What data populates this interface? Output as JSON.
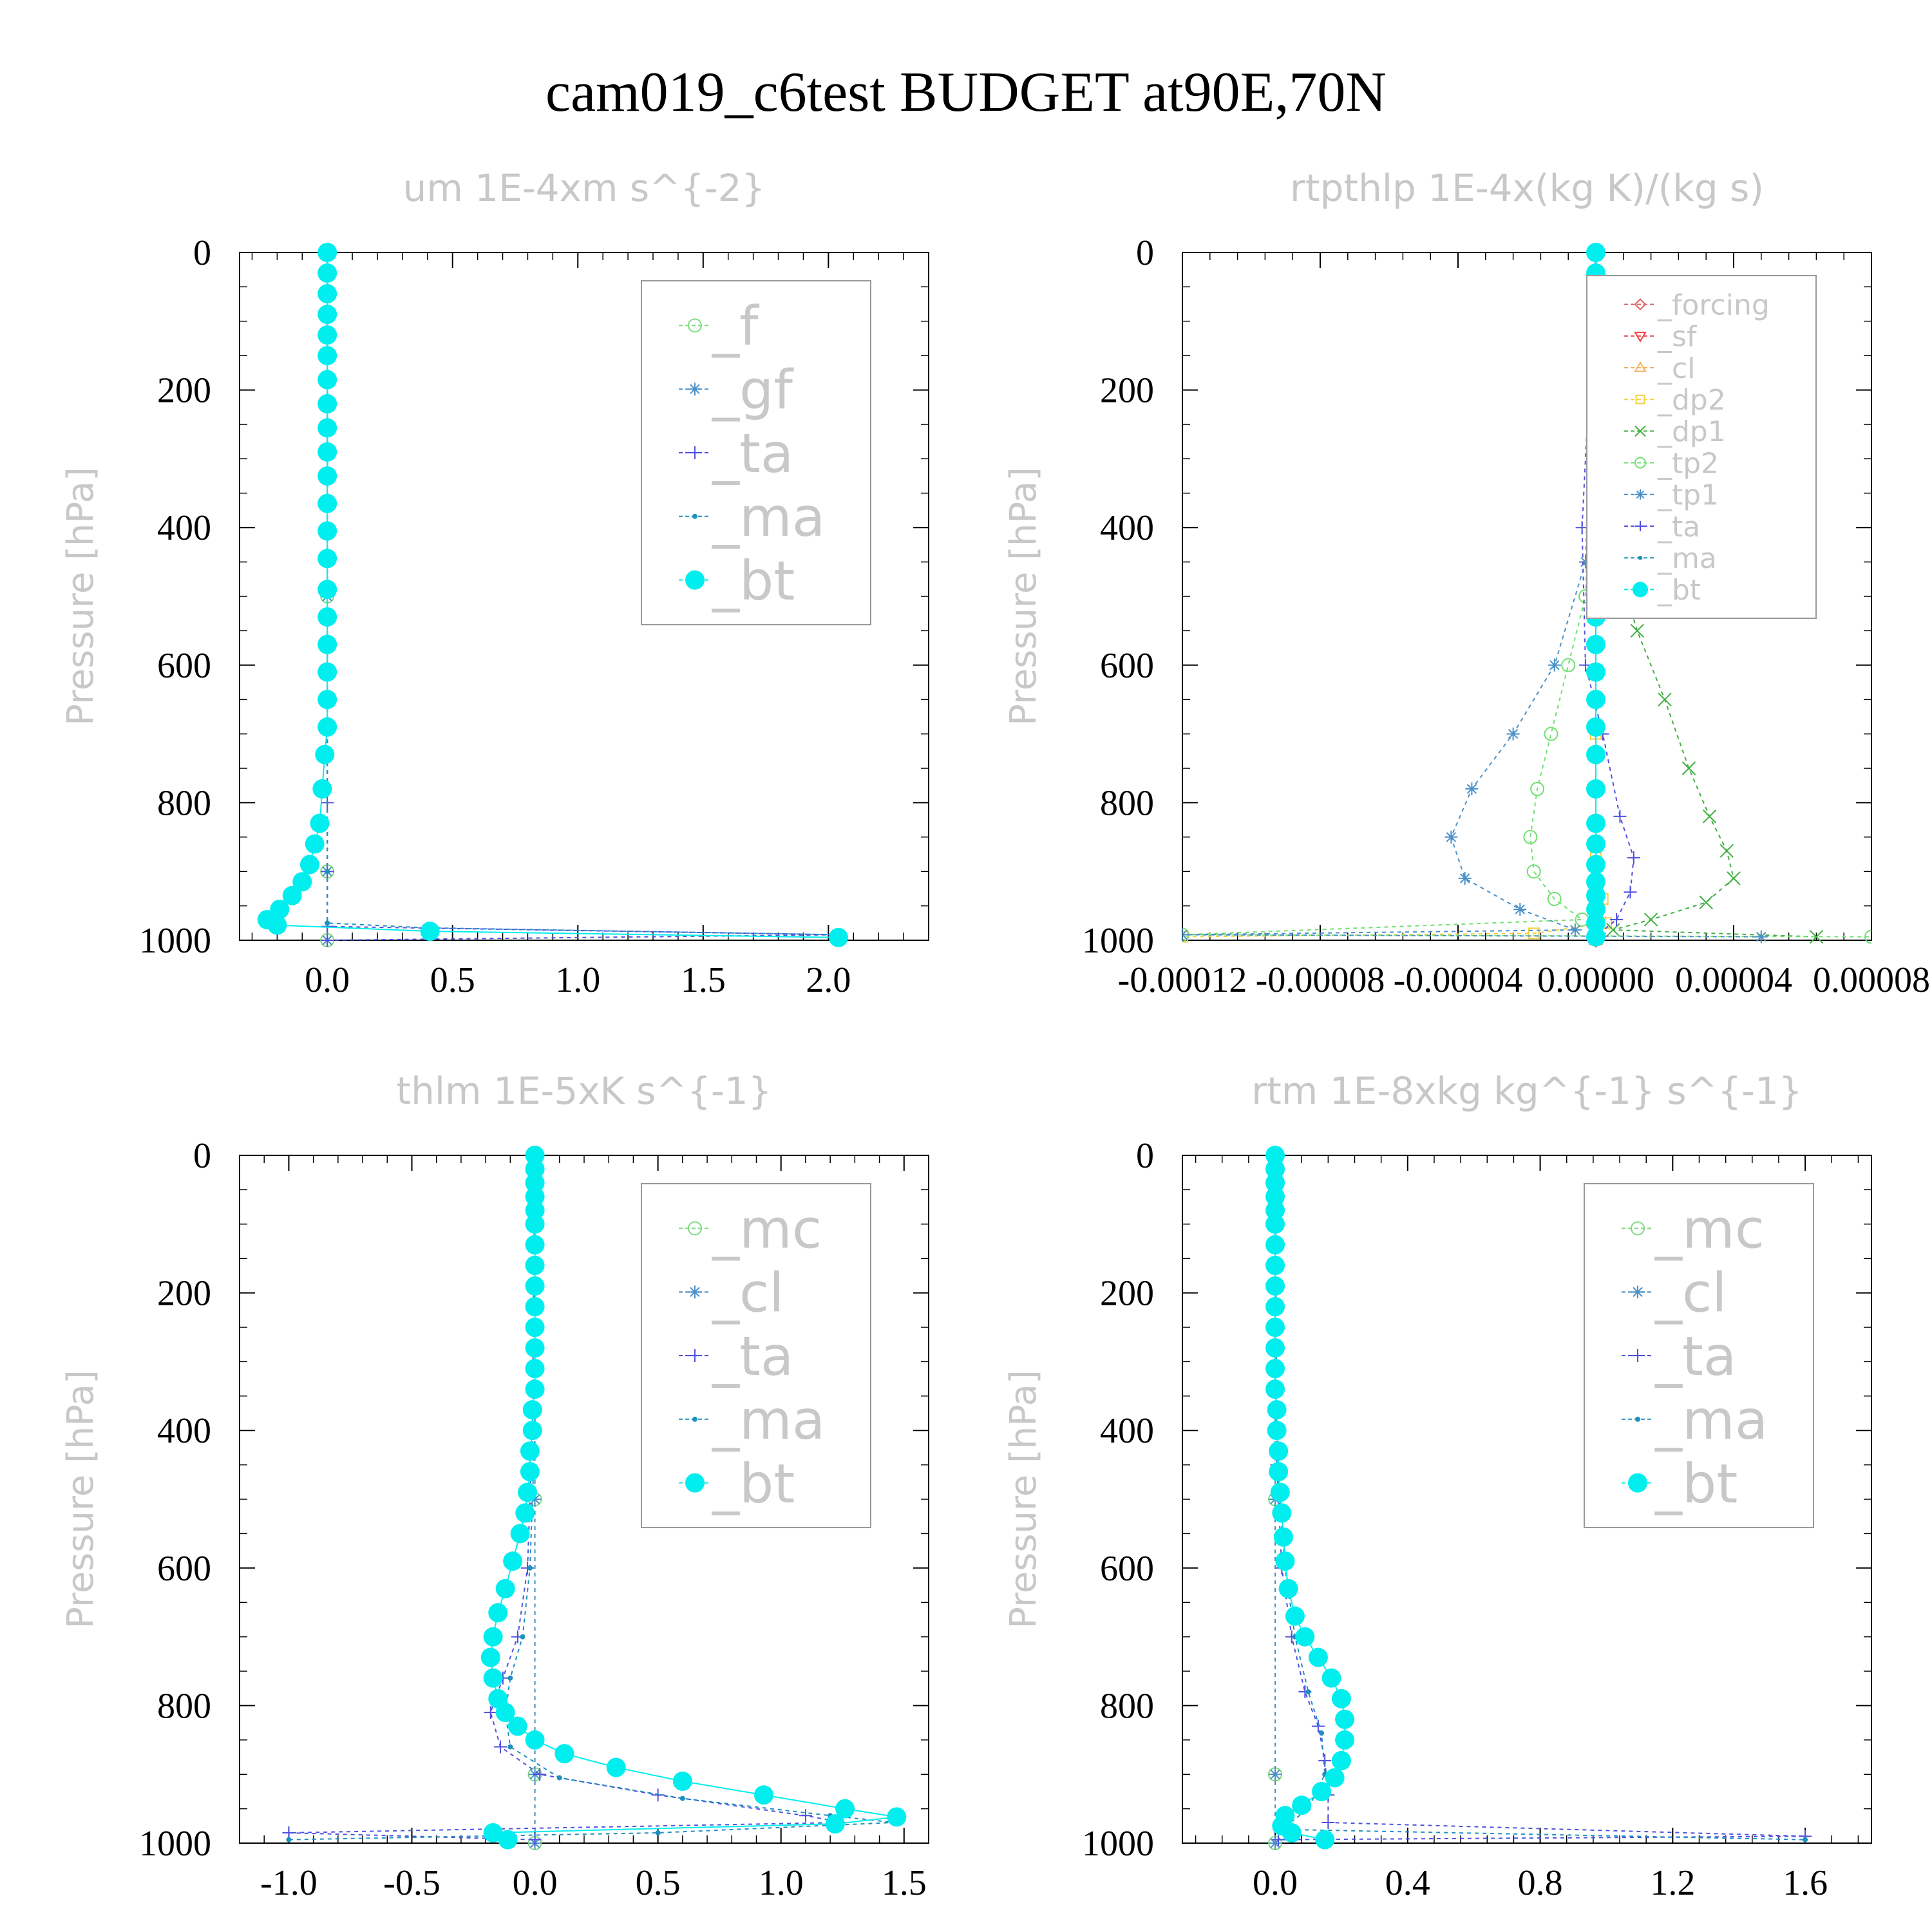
{
  "title": "cam019_c6test  BUDGET at90E,70N",
  "colors": {
    "_f": "#7ddc7d",
    "_gf": "#4a90c8",
    "_ta": "#5050e0",
    "_ma": "#1e90c0",
    "_bt": "#00eeee",
    "_mc": "#7ddc7d",
    "_cl": "#4a90c8",
    "_forcing": "#e06060",
    "_sf": "#f04040",
    "_cl_r": "#f0b060",
    "_dp2": "#f0d040",
    "_dp1": "#40b040",
    "_tp2": "#70e070",
    "_tp1": "#4a90c8"
  },
  "chart_data": [
    {
      "type": "line",
      "title": "um  1E-4xm s^{-2}",
      "ylabel": "Pressure [hPa]",
      "xlim": [
        -0.35,
        2.4
      ],
      "ylim": [
        1000,
        0
      ],
      "xticks": [
        0.0,
        0.5,
        1.0,
        1.5,
        2.0
      ],
      "xtick_labels": [
        "0.0",
        "0.5",
        "1.0",
        "1.5",
        "2.0"
      ],
      "yticks": [
        0,
        200,
        400,
        600,
        800,
        1000
      ],
      "ytick_labels": [
        "0",
        "200",
        "400",
        "600",
        "800",
        "1000"
      ],
      "grid": false,
      "legend_position": "top-right",
      "legend_font": 84,
      "series": [
        {
          "name": "_f",
          "marker": "circle",
          "x": [
            0,
            0,
            0,
            0
          ],
          "y": [
            0,
            500,
            900,
            1000
          ]
        },
        {
          "name": "_gf",
          "marker": "star",
          "x": [
            0,
            0,
            0,
            0
          ],
          "y": [
            0,
            500,
            900,
            1000
          ]
        },
        {
          "name": "_ta",
          "marker": "plus",
          "x": [
            0,
            0,
            0,
            0,
            0,
            0,
            2.04,
            0
          ],
          "y": [
            0,
            300,
            600,
            800,
            900,
            980,
            992,
            1000
          ]
        },
        {
          "name": "_ma",
          "marker": "dot",
          "x": [
            0,
            0,
            0,
            0,
            0.4,
            2.04
          ],
          "y": [
            0,
            500,
            900,
            975,
            982,
            992
          ]
        },
        {
          "name": "_bt",
          "marker": "bigdot",
          "x": [
            0,
            0,
            0,
            0,
            0,
            0,
            0,
            0,
            0,
            0,
            0,
            0,
            0,
            0,
            0,
            0,
            0,
            0,
            0,
            0,
            -0.01,
            -0.02,
            -0.03,
            -0.05,
            -0.07,
            -0.1,
            -0.14,
            -0.19,
            -0.24,
            -0.2,
            0.41,
            2.04
          ],
          "y": [
            0,
            30,
            60,
            90,
            120,
            150,
            185,
            220,
            255,
            290,
            325,
            365,
            405,
            445,
            490,
            530,
            570,
            610,
            650,
            690,
            730,
            780,
            830,
            860,
            890,
            915,
            935,
            955,
            970,
            978,
            987,
            996
          ]
        }
      ]
    },
    {
      "type": "line",
      "title": "rtpthlp  1E-4x(kg K)/(kg s)",
      "ylabel": "Pressure [hPa]",
      "xlim": [
        -0.00012,
        8e-05
      ],
      "ylim": [
        1000,
        0
      ],
      "xticks": [
        -0.00012,
        -8e-05,
        -4e-05,
        0.0,
        4e-05,
        8e-05
      ],
      "xtick_labels": [
        "-0.00012",
        "-0.00008",
        "-0.00004",
        "0.00000",
        "0.00004",
        "0.00008"
      ],
      "yticks": [
        0,
        200,
        400,
        600,
        800,
        1000
      ],
      "ytick_labels": [
        "0",
        "200",
        "400",
        "600",
        "800",
        "1000"
      ],
      "grid": false,
      "legend_position": "top-right",
      "legend_font": 44,
      "series": [
        {
          "name": "_forcing",
          "marker": "diamond",
          "x": [
            0,
            0,
            0
          ],
          "y": [
            0,
            500,
            1000
          ]
        },
        {
          "name": "_sf",
          "marker": "tri_down",
          "x": [
            0,
            0,
            0
          ],
          "y": [
            0,
            500,
            1000
          ]
        },
        {
          "name": "_cl",
          "marker": "tri_up",
          "x": [
            0,
            0,
            0
          ],
          "y": [
            0,
            500,
            1000
          ]
        },
        {
          "name": "_dp2",
          "marker": "square",
          "x": [
            0,
            0,
            0,
            0,
            2e-06,
            3e-06,
            -1.8e-05,
            -0.00012
          ],
          "y": [
            0,
            400,
            700,
            880,
            940,
            975,
            990,
            995
          ]
        },
        {
          "name": "_dp1",
          "marker": "cross",
          "x": [
            0,
            2e-06,
            6e-06,
            1.2e-05,
            2e-05,
            2.7e-05,
            3.3e-05,
            3.8e-05,
            4e-05,
            3.2e-05,
            1.6e-05,
            5e-06,
            6.4e-05
          ],
          "y": [
            0,
            350,
            450,
            550,
            650,
            750,
            820,
            870,
            910,
            945,
            970,
            985,
            995
          ]
        },
        {
          "name": "_tp2",
          "marker": "circle",
          "x": [
            0,
            -3e-06,
            -8e-06,
            -1.3e-05,
            -1.7e-05,
            -1.9e-05,
            -1.8e-05,
            -1.2e-05,
            -4e-06,
            -0.00012,
            8e-05
          ],
          "y": [
            0,
            500,
            600,
            700,
            780,
            850,
            900,
            940,
            970,
            992,
            995
          ]
        },
        {
          "name": "_tp1",
          "marker": "star",
          "x": [
            0,
            -3e-06,
            -1.2e-05,
            -2.4e-05,
            -3.6e-05,
            -4.2e-05,
            -3.8e-05,
            -2.2e-05,
            -6e-06,
            -0.00012,
            4.8e-05
          ],
          "y": [
            0,
            450,
            600,
            700,
            780,
            850,
            910,
            955,
            985,
            992,
            995
          ]
        },
        {
          "name": "_ta",
          "marker": "plus",
          "x": [
            0,
            -4e-06,
            -3e-06,
            2e-06,
            7e-06,
            1.1e-05,
            1e-05,
            6e-06,
            1e-06
          ],
          "y": [
            0,
            400,
            600,
            700,
            820,
            880,
            930,
            970,
            990
          ]
        },
        {
          "name": "_ma",
          "marker": "dot",
          "x": [
            0,
            0,
            0
          ],
          "y": [
            0,
            500,
            1000
          ]
        },
        {
          "name": "_bt",
          "marker": "bigdot",
          "x": [
            0,
            0,
            0,
            0,
            0,
            0,
            0,
            0,
            0,
            0,
            0,
            0,
            0,
            0,
            0,
            0,
            0,
            0,
            0,
            0,
            0,
            0,
            0,
            0,
            0,
            0,
            0,
            0,
            0,
            0
          ],
          "y": [
            0,
            30,
            60,
            90,
            120,
            150,
            185,
            220,
            255,
            290,
            325,
            365,
            405,
            445,
            490,
            530,
            570,
            610,
            650,
            690,
            730,
            780,
            830,
            860,
            890,
            915,
            935,
            955,
            975,
            995
          ]
        }
      ]
    },
    {
      "type": "line",
      "title": "thlm  1E-5xK s^{-1}",
      "ylabel": "Pressure [hPa]",
      "xlim": [
        -1.2,
        1.6
      ],
      "ylim": [
        1000,
        0
      ],
      "xticks": [
        -1.0,
        -0.5,
        0.0,
        0.5,
        1.0,
        1.5
      ],
      "xtick_labels": [
        "-1.0",
        "-0.5",
        "0.0",
        "0.5",
        "1.0",
        "1.5"
      ],
      "yticks": [
        0,
        200,
        400,
        600,
        800,
        1000
      ],
      "ytick_labels": [
        "0",
        "200",
        "400",
        "600",
        "800",
        "1000"
      ],
      "grid": false,
      "legend_position": "top-right",
      "legend_font": 84,
      "series": [
        {
          "name": "_mc",
          "marker": "circle",
          "x": [
            0,
            0,
            0,
            0
          ],
          "y": [
            0,
            500,
            900,
            1000
          ]
        },
        {
          "name": "_cl",
          "marker": "star",
          "x": [
            0,
            0,
            0,
            0
          ],
          "y": [
            0,
            500,
            900,
            1000
          ]
        },
        {
          "name": "_ta",
          "marker": "plus",
          "x": [
            0,
            -0.01,
            -0.03,
            -0.07,
            -0.13,
            -0.18,
            -0.14,
            0.02,
            0.5,
            1.1,
            1.25,
            -1.0,
            0
          ],
          "y": [
            0,
            400,
            600,
            700,
            760,
            810,
            860,
            900,
            930,
            960,
            970,
            985,
            995
          ]
        },
        {
          "name": "_ma",
          "marker": "dot",
          "x": [
            0,
            0,
            -0.02,
            -0.05,
            -0.1,
            -0.12,
            -0.1,
            0.1,
            0.6,
            1.2,
            1.46,
            0.5,
            -1.0
          ],
          "y": [
            0,
            400,
            600,
            700,
            760,
            810,
            860,
            905,
            935,
            960,
            970,
            985,
            995
          ]
        },
        {
          "name": "_bt",
          "marker": "bigdot",
          "x": [
            0,
            0,
            0,
            0,
            0,
            0,
            0,
            0,
            0,
            0,
            0,
            0,
            0,
            0,
            -0.01,
            -0.01,
            -0.02,
            -0.02,
            -0.03,
            -0.04,
            -0.06,
            -0.09,
            -0.12,
            -0.15,
            -0.17,
            -0.18,
            -0.17,
            -0.15,
            -0.12,
            -0.07,
            0.0,
            0.12,
            0.33,
            0.6,
            0.93,
            1.26,
            1.47,
            1.22,
            -0.17,
            -0.11
          ],
          "y": [
            0,
            20,
            40,
            60,
            80,
            100,
            130,
            160,
            190,
            220,
            250,
            280,
            310,
            340,
            370,
            400,
            430,
            460,
            490,
            520,
            550,
            590,
            630,
            665,
            700,
            730,
            760,
            790,
            810,
            830,
            850,
            870,
            890,
            910,
            930,
            950,
            962,
            972,
            985,
            995
          ]
        }
      ]
    },
    {
      "type": "line",
      "title": "rtm  1E-8xkg kg^{-1} s^{-1}",
      "ylabel": "Pressure [hPa]",
      "xlim": [
        -0.28,
        1.8
      ],
      "ylim": [
        1000,
        0
      ],
      "xticks": [
        0.0,
        0.4,
        0.8,
        1.2,
        1.6
      ],
      "xtick_labels": [
        "0.0",
        "0.4",
        "0.8",
        "1.2",
        "1.6"
      ],
      "yticks": [
        0,
        200,
        400,
        600,
        800,
        1000
      ],
      "ytick_labels": [
        "0",
        "200",
        "400",
        "600",
        "800",
        "1000"
      ],
      "grid": false,
      "legend_position": "top-right",
      "legend_font": 84,
      "series": [
        {
          "name": "_mc",
          "marker": "circle",
          "x": [
            0,
            0,
            0,
            0
          ],
          "y": [
            0,
            500,
            900,
            1000
          ]
        },
        {
          "name": "_cl",
          "marker": "star",
          "x": [
            0,
            0,
            0,
            0
          ],
          "y": [
            0,
            500,
            900,
            1000
          ]
        },
        {
          "name": "_ta",
          "marker": "plus",
          "x": [
            0,
            0.005,
            0.02,
            0.05,
            0.09,
            0.13,
            0.15,
            0.16,
            0.16,
            1.6,
            0.01
          ],
          "y": [
            0,
            450,
            600,
            700,
            780,
            830,
            880,
            930,
            970,
            990,
            995
          ]
        },
        {
          "name": "_ma",
          "marker": "dot",
          "x": [
            0,
            0.005,
            0.03,
            0.06,
            0.1,
            0.14,
            0.15,
            0.1,
            0.02,
            1.6
          ],
          "y": [
            0,
            450,
            600,
            700,
            780,
            840,
            900,
            950,
            980,
            995
          ]
        },
        {
          "name": "_bt",
          "marker": "bigdot",
          "x": [
            0,
            0,
            0,
            0,
            0,
            0,
            0,
            0,
            0,
            0,
            0,
            0,
            0,
            0,
            0.005,
            0.005,
            0.01,
            0.01,
            0.015,
            0.02,
            0.025,
            0.03,
            0.04,
            0.06,
            0.09,
            0.13,
            0.17,
            0.2,
            0.21,
            0.21,
            0.2,
            0.18,
            0.14,
            0.08,
            0.03,
            0.02,
            0.05,
            0.15
          ],
          "y": [
            0,
            20,
            40,
            60,
            80,
            100,
            130,
            160,
            190,
            220,
            250,
            280,
            310,
            340,
            370,
            400,
            430,
            460,
            490,
            520,
            555,
            590,
            630,
            670,
            700,
            730,
            760,
            790,
            820,
            850,
            880,
            905,
            925,
            945,
            960,
            975,
            985,
            995
          ]
        }
      ]
    }
  ]
}
